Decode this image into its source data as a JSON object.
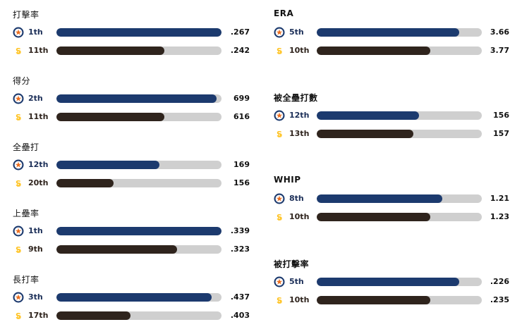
{
  "colors": {
    "astros": "#1c3a6e",
    "padres": "#2f241d",
    "track": "#cfcfcf",
    "padres_icon": "#ffc425"
  },
  "chart_data": {
    "type": "bar",
    "orientation": "horizontal",
    "series": [
      {
        "team": "astros",
        "icon": "astros-star-icon"
      },
      {
        "team": "padres",
        "icon": "padres-sd-icon"
      }
    ],
    "left_stats": [
      {
        "title": "打擊率",
        "rows": [
          {
            "team": "astros",
            "rank": "1th",
            "value": ".267",
            "fill": 1.0
          },
          {
            "team": "padres",
            "rank": "11th",
            "value": ".242",
            "fill": 0.655
          }
        ]
      },
      {
        "title": "得分",
        "rows": [
          {
            "team": "astros",
            "rank": "2th",
            "value": "699",
            "fill": 0.97
          },
          {
            "team": "padres",
            "rank": "11th",
            "value": "616",
            "fill": 0.655
          }
        ]
      },
      {
        "title": "全壘打",
        "rows": [
          {
            "team": "astros",
            "rank": "12th",
            "value": "169",
            "fill": 0.625
          },
          {
            "team": "padres",
            "rank": "20th",
            "value": "156",
            "fill": 0.345
          }
        ]
      },
      {
        "title": "上壘率",
        "rows": [
          {
            "team": "astros",
            "rank": "1th",
            "value": ".339",
            "fill": 1.0
          },
          {
            "team": "padres",
            "rank": "9th",
            "value": ".323",
            "fill": 0.73
          }
        ]
      },
      {
        "title": "長打率",
        "rows": [
          {
            "team": "astros",
            "rank": "3th",
            "value": ".437",
            "fill": 0.94
          },
          {
            "team": "padres",
            "rank": "17th",
            "value": ".403",
            "fill": 0.45
          }
        ]
      }
    ],
    "right_stats": [
      {
        "title": "ERA",
        "rows": [
          {
            "team": "astros",
            "rank": "5th",
            "value": "3.66",
            "fill": 0.865
          },
          {
            "team": "padres",
            "rank": "10th",
            "value": "3.77",
            "fill": 0.69
          }
        ]
      },
      {
        "title": "被全壘打數",
        "rows": [
          {
            "team": "astros",
            "rank": "12th",
            "value": "156",
            "fill": 0.62
          },
          {
            "team": "padres",
            "rank": "13th",
            "value": "157",
            "fill": 0.585
          }
        ]
      },
      {
        "title": "WHIP",
        "rows": [
          {
            "team": "astros",
            "rank": "8th",
            "value": "1.21",
            "fill": 0.76
          },
          {
            "team": "padres",
            "rank": "10th",
            "value": "1.23",
            "fill": 0.69
          }
        ]
      },
      {
        "title": "被打擊率",
        "rows": [
          {
            "team": "astros",
            "rank": "5th",
            "value": ".226",
            "fill": 0.865
          },
          {
            "team": "padres",
            "rank": "10th",
            "value": ".235",
            "fill": 0.69
          }
        ]
      }
    ]
  }
}
